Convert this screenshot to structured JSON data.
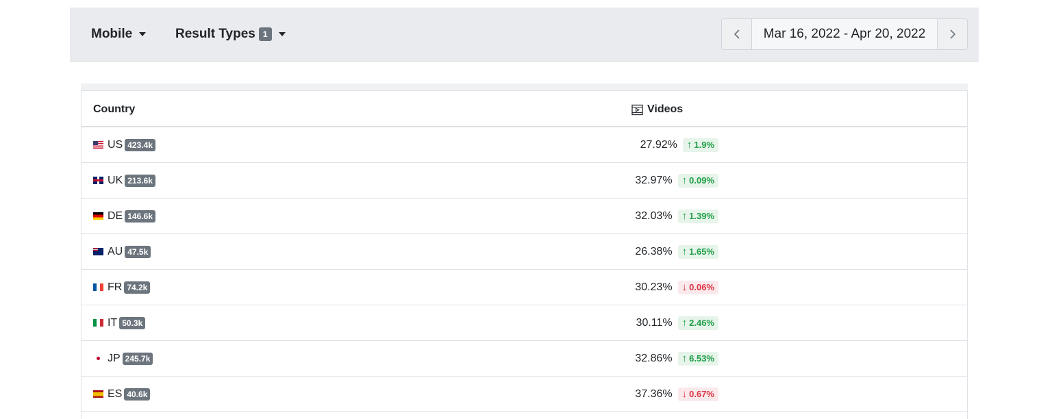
{
  "toolbar": {
    "device_label": "Mobile",
    "result_types_label": "Result Types",
    "result_types_count": "1",
    "date_prev_icon": "chevron-left-icon",
    "date_range": "Mar 16, 2022 - Apr 20, 2022",
    "date_next_icon": "chevron-right-icon"
  },
  "table": {
    "headers": {
      "country": "Country",
      "videos": "Videos",
      "videos_icon": "video-icon"
    },
    "rows": [
      {
        "flag": "us-flag-icon",
        "code": "US",
        "volume": "423.4k",
        "value": "27.92%",
        "delta": "1.9%",
        "direction": "up"
      },
      {
        "flag": "uk-flag-icon",
        "code": "UK",
        "volume": "213.6k",
        "value": "32.97%",
        "delta": "0.09%",
        "direction": "up"
      },
      {
        "flag": "de-flag-icon",
        "code": "DE",
        "volume": "146.6k",
        "value": "32.03%",
        "delta": "1.39%",
        "direction": "up"
      },
      {
        "flag": "au-flag-icon",
        "code": "AU",
        "volume": "47.5k",
        "value": "26.38%",
        "delta": "1.65%",
        "direction": "up"
      },
      {
        "flag": "fr-flag-icon",
        "code": "FR",
        "volume": "74.2k",
        "value": "30.23%",
        "delta": "0.06%",
        "direction": "down"
      },
      {
        "flag": "it-flag-icon",
        "code": "IT",
        "volume": "50.3k",
        "value": "30.11%",
        "delta": "2.46%",
        "direction": "up"
      },
      {
        "flag": "jp-flag-icon",
        "code": "JP",
        "volume": "245.7k",
        "value": "32.86%",
        "delta": "6.53%",
        "direction": "up"
      },
      {
        "flag": "es-flag-icon",
        "code": "ES",
        "volume": "40.6k",
        "value": "37.36%",
        "delta": "0.67%",
        "direction": "down"
      }
    ]
  },
  "colors": {
    "toolbar_bg": "#e9ebef",
    "badge_gray": "#6c757d",
    "positive_green": "#1e9e46",
    "negative_red": "#dc3545"
  }
}
